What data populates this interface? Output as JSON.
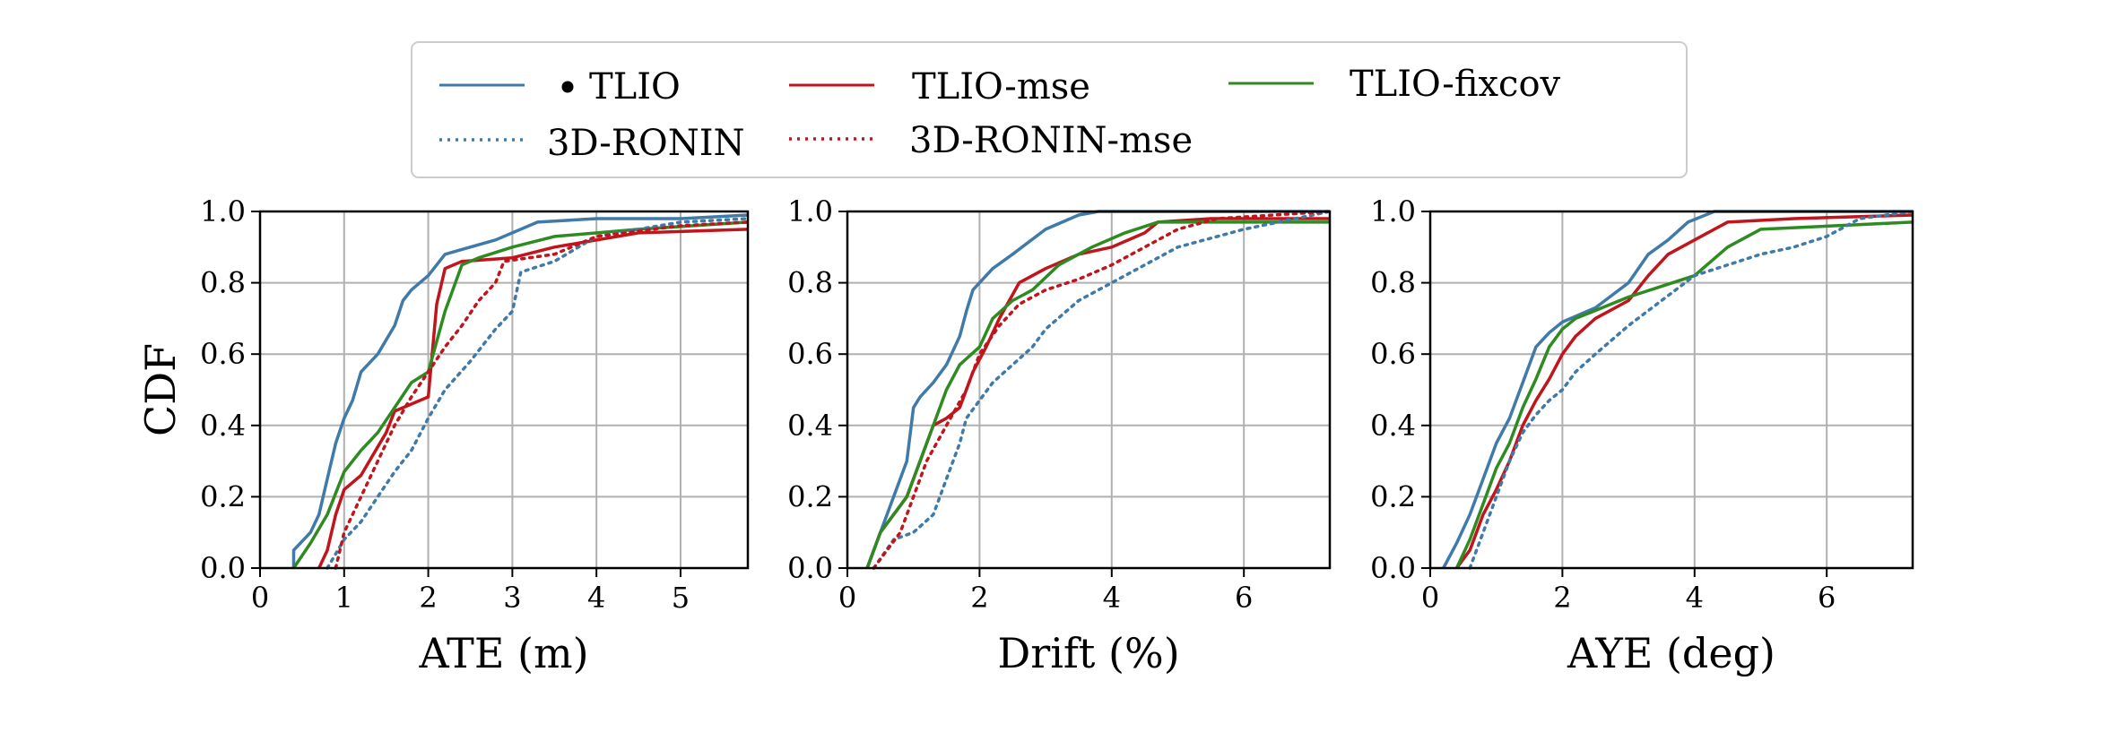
{
  "colors": {
    "tlio": "#3f7aa8",
    "ronin": "#3f7aa8",
    "mse": "#c0151c",
    "fixcov": "#2e8b22",
    "grid": "#b0b0b0"
  },
  "legend": {
    "entries": [
      {
        "key": "tlio",
        "label": "TLIO",
        "color": "#3f7aa8",
        "style": "solid",
        "dot": true
      },
      {
        "key": "tlio_mse",
        "label": "TLIO-mse",
        "color": "#c0151c",
        "style": "solid"
      },
      {
        "key": "tlio_fixcov",
        "label": "TLIO-fixcov",
        "color": "#2e8b22",
        "style": "solid"
      },
      {
        "key": "ronin",
        "label": "3D-RONIN",
        "color": "#3f7aa8",
        "style": "dotted"
      },
      {
        "key": "ronin_mse",
        "label": "3D-RONIN-mse",
        "color": "#c0151c",
        "style": "dotted"
      }
    ]
  },
  "chart_data": [
    {
      "type": "line",
      "xlabel": "ATE (m)",
      "ylabel": "CDF",
      "xlim": [
        0,
        5.8
      ],
      "ylim": [
        0,
        1
      ],
      "xticks": [
        0,
        1,
        2,
        3,
        4,
        5
      ],
      "yticks": [
        "0.0",
        "0.2",
        "0.4",
        "0.6",
        "0.8",
        "1.0"
      ],
      "grid": true,
      "series": [
        {
          "name": "TLIO",
          "style": "solid",
          "color": "#3f7aa8",
          "x": [
            0.4,
            0.4,
            0.6,
            0.7,
            0.8,
            0.9,
            1.0,
            1.1,
            1.2,
            1.4,
            1.6,
            1.7,
            1.8,
            2.0,
            2.2,
            2.8,
            3.3,
            4.0,
            5.0,
            5.8
          ],
          "y": [
            0.0,
            0.05,
            0.1,
            0.15,
            0.25,
            0.35,
            0.42,
            0.47,
            0.55,
            0.6,
            0.68,
            0.75,
            0.78,
            0.82,
            0.88,
            0.92,
            0.97,
            0.98,
            0.98,
            0.99
          ]
        },
        {
          "name": "TLIO-mse",
          "style": "solid",
          "color": "#c0151c",
          "x": [
            0.7,
            0.8,
            0.9,
            1.0,
            1.2,
            1.3,
            1.5,
            1.6,
            2.0,
            2.1,
            2.2,
            2.4,
            3.0,
            3.5,
            4.5,
            5.8
          ],
          "y": [
            0.0,
            0.05,
            0.15,
            0.22,
            0.26,
            0.3,
            0.38,
            0.44,
            0.48,
            0.74,
            0.84,
            0.86,
            0.87,
            0.9,
            0.94,
            0.95
          ]
        },
        {
          "name": "TLIO-fixcov",
          "style": "solid",
          "color": "#2e8b22",
          "x": [
            0.4,
            0.6,
            0.8,
            1.0,
            1.2,
            1.4,
            1.6,
            1.8,
            2.0,
            2.2,
            2.4,
            2.6,
            3.0,
            3.5,
            4.5,
            5.8
          ],
          "y": [
            0.0,
            0.07,
            0.15,
            0.27,
            0.33,
            0.38,
            0.45,
            0.52,
            0.55,
            0.72,
            0.85,
            0.87,
            0.9,
            0.93,
            0.95,
            0.97
          ]
        },
        {
          "name": "3D-RONIN",
          "style": "dotted",
          "color": "#3f7aa8",
          "x": [
            0.8,
            1.0,
            1.2,
            1.4,
            1.6,
            1.8,
            2.0,
            2.2,
            2.5,
            2.8,
            3.0,
            3.1,
            3.5,
            4.0,
            5.0,
            5.8
          ],
          "y": [
            0.0,
            0.08,
            0.13,
            0.2,
            0.27,
            0.33,
            0.42,
            0.5,
            0.58,
            0.67,
            0.72,
            0.83,
            0.86,
            0.93,
            0.97,
            0.98
          ]
        },
        {
          "name": "3D-RONIN-mse",
          "style": "dotted",
          "color": "#c0151c",
          "x": [
            0.9,
            1.0,
            1.2,
            1.4,
            1.6,
            1.8,
            2.0,
            2.2,
            2.4,
            2.6,
            2.8,
            2.9,
            3.5,
            4.0,
            5.0,
            5.8
          ],
          "y": [
            0.0,
            0.1,
            0.2,
            0.3,
            0.4,
            0.48,
            0.55,
            0.62,
            0.68,
            0.75,
            0.8,
            0.86,
            0.88,
            0.93,
            0.96,
            0.97
          ]
        }
      ]
    },
    {
      "type": "line",
      "xlabel": "Drift (%)",
      "ylabel": "",
      "xlim": [
        0,
        7.3
      ],
      "ylim": [
        0,
        1
      ],
      "xticks": [
        0,
        2,
        4,
        6
      ],
      "yticks": [
        "0.0",
        "0.2",
        "0.4",
        "0.6",
        "0.8",
        "1.0"
      ],
      "grid": true,
      "series": [
        {
          "name": "TLIO",
          "style": "solid",
          "color": "#3f7aa8",
          "x": [
            0.3,
            0.5,
            0.7,
            0.9,
            1.0,
            1.1,
            1.3,
            1.5,
            1.7,
            1.8,
            1.9,
            2.0,
            2.2,
            2.5,
            3.0,
            3.5,
            3.8,
            7.3
          ],
          "y": [
            0.0,
            0.1,
            0.2,
            0.3,
            0.45,
            0.48,
            0.52,
            0.57,
            0.65,
            0.72,
            0.78,
            0.8,
            0.84,
            0.88,
            0.95,
            0.99,
            1.0,
            1.0
          ]
        },
        {
          "name": "TLIO-mse",
          "style": "solid",
          "color": "#c0151c",
          "x": [
            0.3,
            0.5,
            0.7,
            0.9,
            1.1,
            1.3,
            1.5,
            1.7,
            1.9,
            2.1,
            2.3,
            2.6,
            3.0,
            3.5,
            4.0,
            4.5,
            4.7,
            5.5,
            7.3
          ],
          "y": [
            0.0,
            0.1,
            0.15,
            0.2,
            0.3,
            0.4,
            0.42,
            0.45,
            0.55,
            0.62,
            0.7,
            0.8,
            0.84,
            0.88,
            0.9,
            0.94,
            0.97,
            0.98,
            0.98
          ]
        },
        {
          "name": "TLIO-fixcov",
          "style": "solid",
          "color": "#2e8b22",
          "x": [
            0.3,
            0.5,
            0.7,
            0.9,
            1.1,
            1.3,
            1.5,
            1.7,
            2.0,
            2.2,
            2.5,
            2.8,
            3.2,
            3.7,
            4.2,
            4.7,
            5.5,
            7.3
          ],
          "y": [
            0.0,
            0.1,
            0.15,
            0.2,
            0.3,
            0.4,
            0.5,
            0.57,
            0.62,
            0.7,
            0.75,
            0.78,
            0.85,
            0.9,
            0.94,
            0.97,
            0.97,
            0.97
          ]
        },
        {
          "name": "3D-RONIN",
          "style": "dotted",
          "color": "#3f7aa8",
          "x": [
            0.4,
            0.7,
            1.0,
            1.3,
            1.5,
            1.7,
            1.8,
            2.0,
            2.2,
            2.5,
            2.8,
            3.0,
            3.5,
            4.0,
            4.5,
            5.0,
            6.0,
            7.3
          ],
          "y": [
            0.0,
            0.08,
            0.1,
            0.15,
            0.25,
            0.35,
            0.42,
            0.47,
            0.52,
            0.57,
            0.62,
            0.67,
            0.75,
            0.8,
            0.85,
            0.9,
            0.95,
            1.0
          ]
        },
        {
          "name": "3D-RONIN-mse",
          "style": "dotted",
          "color": "#c0151c",
          "x": [
            0.4,
            0.6,
            0.8,
            1.0,
            1.2,
            1.5,
            1.8,
            2.0,
            2.3,
            2.6,
            3.0,
            3.5,
            4.0,
            4.5,
            5.0,
            5.6,
            7.3
          ],
          "y": [
            0.0,
            0.05,
            0.1,
            0.2,
            0.3,
            0.4,
            0.5,
            0.6,
            0.68,
            0.74,
            0.78,
            0.81,
            0.85,
            0.9,
            0.95,
            0.98,
            1.0
          ]
        }
      ]
    },
    {
      "type": "line",
      "xlabel": "AYE (deg)",
      "ylabel": "",
      "xlim": [
        0,
        7.3
      ],
      "ylim": [
        0,
        1
      ],
      "xticks": [
        0,
        2,
        4,
        6
      ],
      "yticks": [
        "0.0",
        "0.2",
        "0.4",
        "0.6",
        "0.8",
        "1.0"
      ],
      "grid": true,
      "series": [
        {
          "name": "TLIO",
          "style": "solid",
          "color": "#3f7aa8",
          "x": [
            0.2,
            0.4,
            0.6,
            0.8,
            1.0,
            1.2,
            1.4,
            1.6,
            1.8,
            2.0,
            2.5,
            3.0,
            3.3,
            3.6,
            3.9,
            4.3,
            7.3
          ],
          "y": [
            0.0,
            0.07,
            0.15,
            0.25,
            0.35,
            0.42,
            0.52,
            0.62,
            0.66,
            0.69,
            0.73,
            0.8,
            0.88,
            0.92,
            0.97,
            1.0,
            1.0
          ]
        },
        {
          "name": "TLIO-mse",
          "style": "solid",
          "color": "#c0151c",
          "x": [
            0.4,
            0.6,
            0.8,
            1.0,
            1.2,
            1.4,
            1.6,
            1.8,
            2.0,
            2.2,
            2.5,
            3.0,
            3.3,
            3.6,
            4.0,
            4.5,
            5.5,
            7.3
          ],
          "y": [
            0.0,
            0.05,
            0.15,
            0.22,
            0.3,
            0.4,
            0.47,
            0.53,
            0.6,
            0.65,
            0.7,
            0.75,
            0.82,
            0.88,
            0.92,
            0.97,
            0.98,
            0.99
          ]
        },
        {
          "name": "TLIO-fixcov",
          "style": "solid",
          "color": "#2e8b22",
          "x": [
            0.4,
            0.6,
            0.8,
            1.0,
            1.2,
            1.4,
            1.6,
            1.8,
            2.0,
            2.2,
            2.6,
            3.0,
            3.5,
            4.0,
            4.5,
            5.0,
            7.3
          ],
          "y": [
            0.0,
            0.08,
            0.18,
            0.28,
            0.35,
            0.45,
            0.53,
            0.62,
            0.67,
            0.7,
            0.73,
            0.76,
            0.79,
            0.82,
            0.9,
            0.95,
            0.97
          ]
        },
        {
          "name": "3D-RONIN",
          "style": "dotted",
          "color": "#3f7aa8",
          "x": [
            0.6,
            0.8,
            1.0,
            1.2,
            1.4,
            1.6,
            1.8,
            2.0,
            2.2,
            2.5,
            3.0,
            3.5,
            4.0,
            4.5,
            5.0,
            5.5,
            6.0,
            6.5,
            7.3
          ],
          "y": [
            0.0,
            0.1,
            0.2,
            0.3,
            0.38,
            0.43,
            0.47,
            0.5,
            0.55,
            0.6,
            0.68,
            0.75,
            0.82,
            0.85,
            0.88,
            0.9,
            0.93,
            0.98,
            1.0
          ]
        }
      ]
    }
  ]
}
